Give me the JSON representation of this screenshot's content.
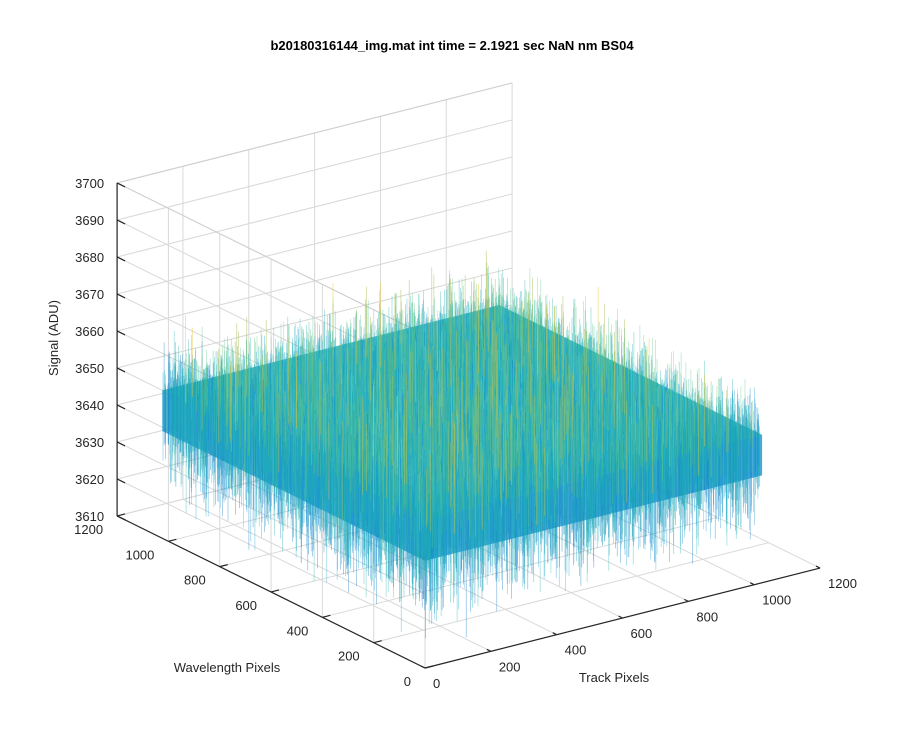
{
  "chart_data": {
    "type": "surface",
    "title": "b20180316144_img.mat int time = 2.1921 sec  NaN nm BS04",
    "xlabel": "Track Pixels",
    "ylabel": "Wavelength Pixels",
    "zlabel": "Signal (ADU)",
    "xlim": [
      0,
      1200
    ],
    "ylim": [
      0,
      1200
    ],
    "zlim": [
      3610,
      3700
    ],
    "x_ticks": [
      "0",
      "200",
      "400",
      "600",
      "800",
      "1000",
      "1200"
    ],
    "y_ticks": [
      "0",
      "200",
      "400",
      "600",
      "800",
      "1000",
      "1200"
    ],
    "z_ticks": [
      "3610",
      "3620",
      "3630",
      "3640",
      "3650",
      "3660",
      "3670",
      "3680",
      "3690",
      "3700"
    ],
    "data_extent": {
      "x": [
        0,
        1024
      ],
      "y": [
        0,
        1024
      ]
    },
    "signal_mean": 3650,
    "signal_spread": [
      3615,
      3688
    ],
    "colormap": "parula",
    "colors": [
      "#0072BD",
      "#1a9fd6",
      "#1fb5b0",
      "#5dc387",
      "#a9bf5a",
      "#e5c93a"
    ],
    "grid": true
  }
}
